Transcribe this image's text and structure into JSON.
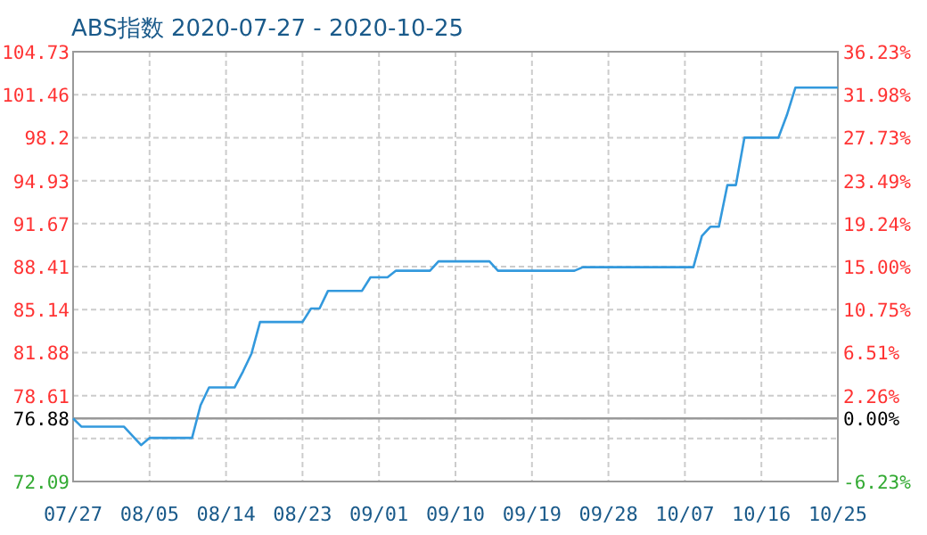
{
  "chart_data": {
    "type": "line",
    "title": "ABS指数 2020-07-27 - 2020-10-25",
    "x": [
      "2020-07-27",
      "2020-07-28",
      "2020-08-02",
      "2020-08-04",
      "2020-08-05",
      "2020-08-10",
      "2020-08-11",
      "2020-08-12",
      "2020-08-15",
      "2020-08-16",
      "2020-08-17",
      "2020-08-18",
      "2020-08-23",
      "2020-08-24",
      "2020-08-25",
      "2020-08-26",
      "2020-08-30",
      "2020-08-31",
      "2020-09-02",
      "2020-09-03",
      "2020-09-07",
      "2020-09-08",
      "2020-09-14",
      "2020-09-15",
      "2020-09-24",
      "2020-09-25",
      "2020-10-08",
      "2020-10-09",
      "2020-10-10",
      "2020-10-11",
      "2020-10-12",
      "2020-10-13",
      "2020-10-14",
      "2020-10-18",
      "2020-10-19",
      "2020-10-20",
      "2020-10-25"
    ],
    "series": [
      {
        "color": "#3399dd",
        "values": [
          76.88,
          76.25,
          76.25,
          74.85,
          75.4,
          75.4,
          77.88,
          79.23,
          79.23,
          80.45,
          81.81,
          84.2,
          84.2,
          85.23,
          85.23,
          86.57,
          86.57,
          87.6,
          87.6,
          88.1,
          88.1,
          88.81,
          88.81,
          88.1,
          88.1,
          88.37,
          88.37,
          90.74,
          91.44,
          91.44,
          94.6,
          94.6,
          98.2,
          98.2,
          99.92,
          102.0,
          102.0
        ]
      }
    ],
    "xlim": [
      "2020-07-27",
      "2020-10-25"
    ],
    "xticks": [
      {
        "value": "2020-07-27",
        "label": "07/27"
      },
      {
        "value": "2020-08-05",
        "label": "08/05"
      },
      {
        "value": "2020-08-14",
        "label": "08/14"
      },
      {
        "value": "2020-08-23",
        "label": "08/23"
      },
      {
        "value": "2020-09-01",
        "label": "09/01"
      },
      {
        "value": "2020-09-10",
        "label": "09/10"
      },
      {
        "value": "2020-09-19",
        "label": "09/19"
      },
      {
        "value": "2020-09-28",
        "label": "09/28"
      },
      {
        "value": "2020-10-07",
        "label": "10/07"
      },
      {
        "value": "2020-10-16",
        "label": "10/16"
      },
      {
        "value": "2020-10-25",
        "label": "10/25"
      }
    ],
    "ylim": [
      72.09,
      104.73
    ],
    "yticks": [
      72.09,
      {
        "value": 75.35,
        "label": null
      },
      76.88,
      78.61,
      81.88,
      85.14,
      88.41,
      91.67,
      94.93,
      {
        "value": 98.2,
        "label": "98.2"
      },
      101.46,
      104.73
    ],
    "y2lim": [
      -6.23,
      36.23
    ],
    "y2ticks": [
      {
        "value": -6.23,
        "label": "-6.23%"
      },
      {
        "value": -1.99,
        "label": null
      },
      {
        "value": 0,
        "label": "0.00%"
      },
      {
        "value": 2.26,
        "label": "2.26%"
      },
      {
        "value": 6.51,
        "label": "6.51%"
      },
      {
        "value": 10.75,
        "label": "10.75%"
      },
      {
        "value": 15.0,
        "label": "15.00%"
      },
      {
        "value": 19.24,
        "label": "19.24%"
      },
      {
        "value": 23.49,
        "label": "23.49%"
      },
      {
        "value": 27.73,
        "label": "27.73%"
      },
      {
        "value": 31.98,
        "label": "31.98%"
      },
      {
        "value": 36.23,
        "label": "36.23%"
      }
    ],
    "ref_lines": [
      {
        "axis": "y",
        "value": 76.88,
        "color": "#999999"
      }
    ],
    "grid": true,
    "marker": "none",
    "line_style": "solid"
  }
}
